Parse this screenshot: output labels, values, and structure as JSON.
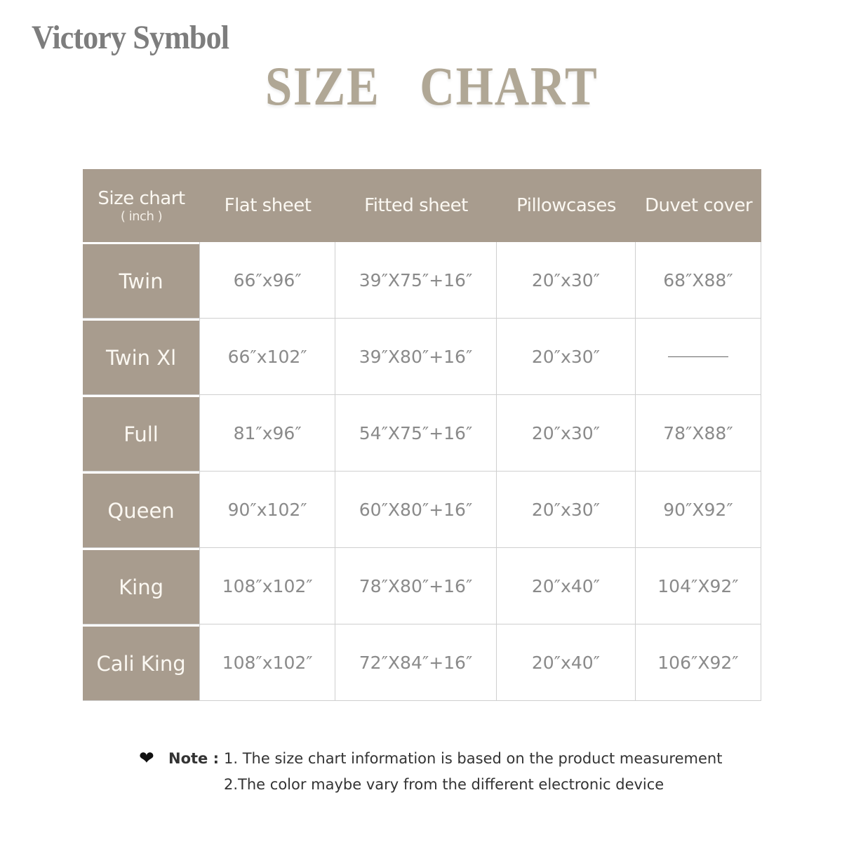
{
  "brand": "Victory Symbol",
  "title": "SIZE   CHART",
  "colors": {
    "accent": "#a89c8e",
    "header_text": "#fbf8f2",
    "cell_text": "#8a8a8a"
  },
  "table": {
    "headers": [
      {
        "label": "Size chart",
        "sub": "( inch )"
      },
      {
        "label": "Flat sheet"
      },
      {
        "label": "Fitted sheet"
      },
      {
        "label": "Pillowcases"
      },
      {
        "label": "Duvet cover"
      }
    ],
    "rows": [
      {
        "size": "Twin",
        "flat": "66″x96″",
        "fitted": "39″X75″+16″",
        "pillow": "20″x30″",
        "duvet": "68″X88″"
      },
      {
        "size": "Twin Xl",
        "flat": "66″x102″",
        "fitted": "39″X80″+16″",
        "pillow": "20″x30″",
        "duvet": null
      },
      {
        "size": "Full",
        "flat": "81″x96″",
        "fitted": "54″X75″+16″",
        "pillow": "20″x30″",
        "duvet": "78″X88″"
      },
      {
        "size": "Queen",
        "flat": "90″x102″",
        "fitted": "60″X80″+16″",
        "pillow": "20″x30″",
        "duvet": "90″X92″"
      },
      {
        "size": "King",
        "flat": "108″x102″",
        "fitted": "78″X80″+16″",
        "pillow": "20″x40″",
        "duvet": "104″X92″"
      },
      {
        "size": "Cali King",
        "flat": "108″x102″",
        "fitted": "72″X84″+16″",
        "pillow": "20″x40″",
        "duvet": "106″X92″"
      }
    ]
  },
  "note": {
    "icon": "heart-icon",
    "label": "Note :",
    "line1": "1. The size chart information is based on the product measurement",
    "line2": "2.The color maybe vary from the different electronic device"
  }
}
